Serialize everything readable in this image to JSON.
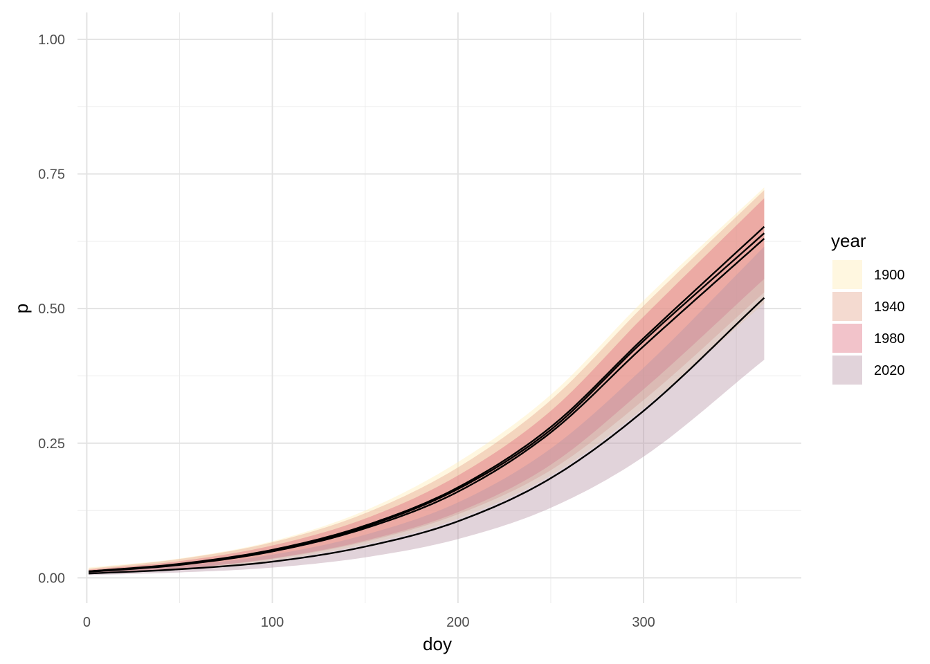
{
  "chart_data": {
    "type": "area",
    "xlabel": "doy",
    "ylabel": "p",
    "xlim": [
      -5,
      385
    ],
    "ylim": [
      -0.047,
      1.05
    ],
    "x_ticks": [
      0,
      100,
      200,
      300
    ],
    "x_tick_labels": [
      "0",
      "100",
      "200",
      "300"
    ],
    "x_minor_ticks": [
      50,
      150,
      250,
      350
    ],
    "y_ticks": [
      0,
      0.25,
      0.5,
      0.75,
      1.0
    ],
    "y_tick_labels": [
      "0.00",
      "0.25",
      "0.50",
      "0.75",
      "1.00"
    ],
    "y_minor_ticks": [
      0.125,
      0.375,
      0.625,
      0.875
    ],
    "grid": true,
    "legend": {
      "title": "year",
      "placement": "right"
    },
    "x": [
      1,
      50,
      100,
      150,
      200,
      250,
      300,
      365
    ],
    "series": [
      {
        "name": "1900",
        "color": "#FFEBB5",
        "line": [
          0.012,
          0.025,
          0.05,
          0.095,
          0.165,
          0.275,
          0.44,
          0.64
        ],
        "lower": [
          0.008,
          0.015,
          0.032,
          0.062,
          0.11,
          0.19,
          0.315,
          0.51
        ],
        "upper": [
          0.019,
          0.036,
          0.068,
          0.125,
          0.215,
          0.34,
          0.515,
          0.725
        ]
      },
      {
        "name": "1940",
        "color": "#E5A890",
        "line": [
          0.012,
          0.026,
          0.052,
          0.097,
          0.168,
          0.28,
          0.445,
          0.652
        ],
        "lower": [
          0.008,
          0.017,
          0.035,
          0.067,
          0.118,
          0.2,
          0.33,
          0.53
        ],
        "upper": [
          0.017,
          0.035,
          0.066,
          0.12,
          0.205,
          0.33,
          0.505,
          0.72
        ]
      },
      {
        "name": "1980",
        "color": "#E07080",
        "line": [
          0.011,
          0.024,
          0.049,
          0.092,
          0.16,
          0.27,
          0.43,
          0.63
        ],
        "lower": [
          0.008,
          0.017,
          0.036,
          0.069,
          0.122,
          0.21,
          0.35,
          0.555
        ],
        "upper": [
          0.015,
          0.031,
          0.06,
          0.11,
          0.19,
          0.31,
          0.485,
          0.705
        ]
      },
      {
        "name": "2020",
        "color": "#B897A8",
        "line": [
          0.008,
          0.016,
          0.03,
          0.058,
          0.105,
          0.185,
          0.31,
          0.52
        ],
        "lower": [
          0.005,
          0.01,
          0.019,
          0.038,
          0.072,
          0.13,
          0.225,
          0.405
        ],
        "upper": [
          0.011,
          0.022,
          0.043,
          0.08,
          0.14,
          0.24,
          0.39,
          0.615
        ]
      }
    ]
  }
}
